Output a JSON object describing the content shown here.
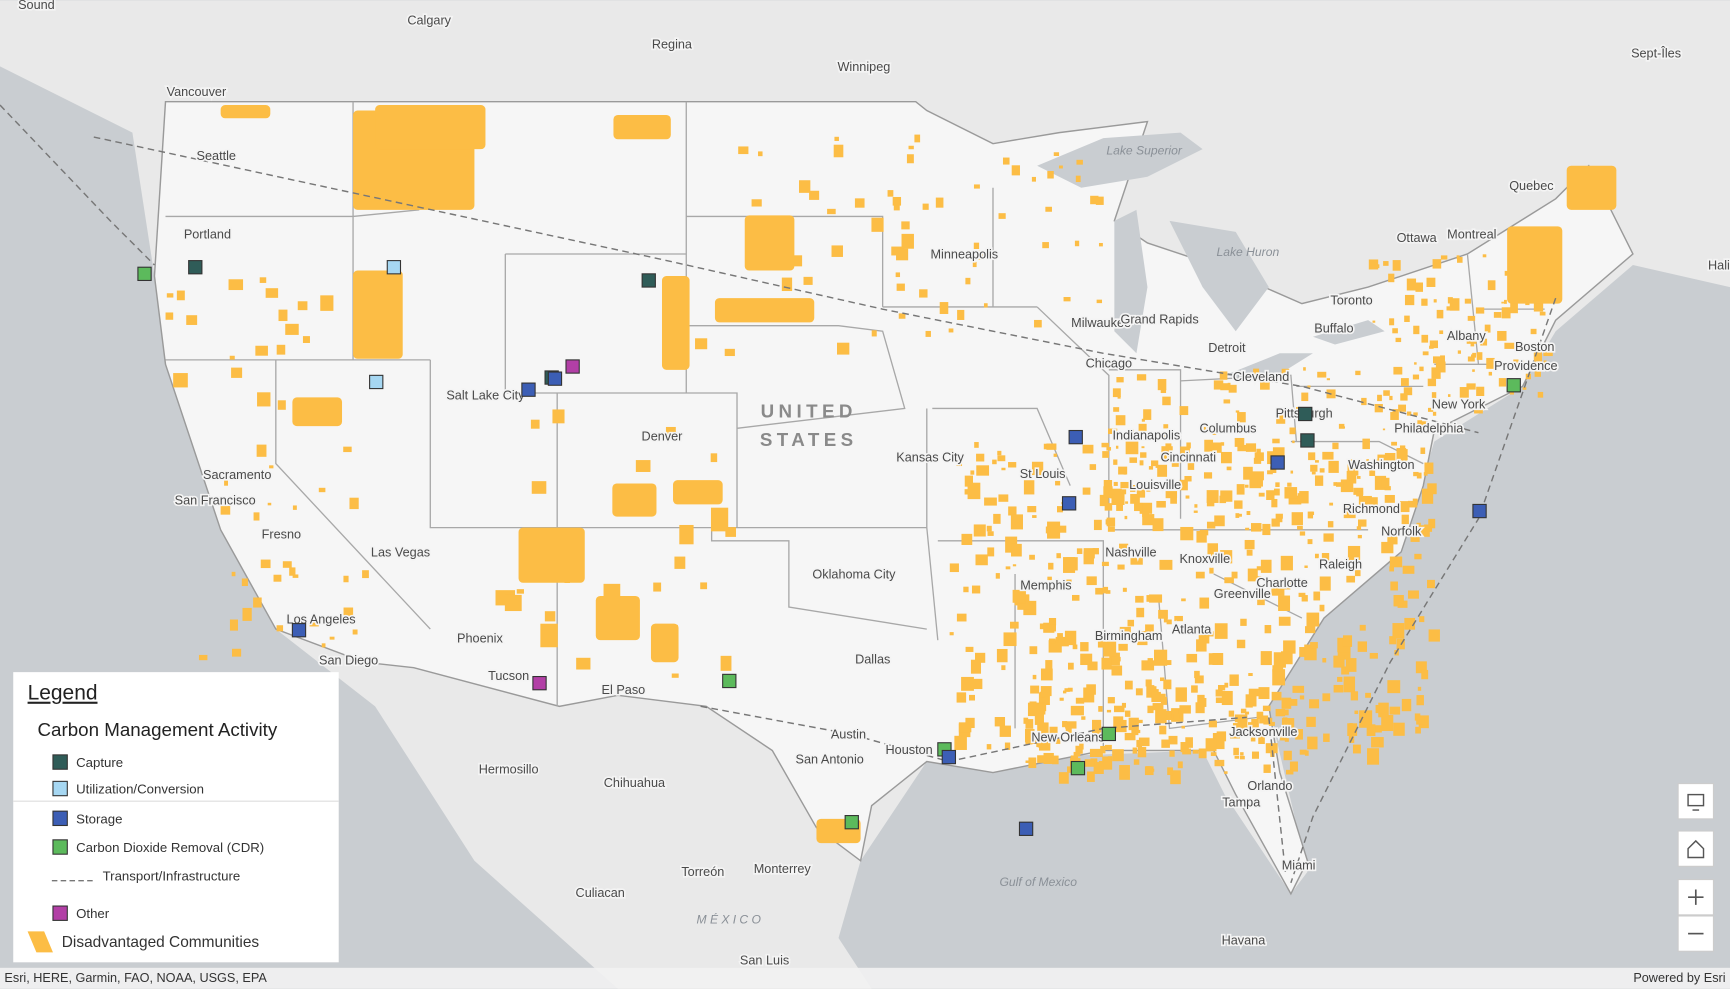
{
  "map": {
    "cities": [
      "Sound",
      "Calgary",
      "Regina",
      "Winnipeg",
      "Vancouver",
      "Seattle",
      "Portland",
      "Sept-Îles",
      "Quebec",
      "Ottawa",
      "Montreal",
      "Hali",
      "Minneapolis",
      "Toronto",
      "Milwaukee",
      "Grand Rapids",
      "Detroit",
      "Buffalo",
      "Albany",
      "Boston",
      "Providence",
      "Chicago",
      "Cleveland",
      "Salt Lake City",
      "New York",
      "Pittsburgh",
      "Philadelphia",
      "Denver",
      "Columbus",
      "Indianapolis",
      "Cincinnati",
      "Washington",
      "Kansas City",
      "St Louis",
      "Sacramento",
      "San Francisco",
      "Louisville",
      "Richmond",
      "Norfolk",
      "Fresno",
      "Las Vegas",
      "Nashville",
      "Knoxville",
      "Oklahoma City",
      "Raleigh",
      "Charlotte",
      "Memphis",
      "Greenville",
      "Los Angeles",
      "Atlanta",
      "Birmingham",
      "Phoenix",
      "San Diego",
      "Dallas",
      "Tucson",
      "El Paso",
      "Austin",
      "New Orleans",
      "Jacksonville",
      "Houston",
      "San Antonio",
      "Hermosillo",
      "Chihuahua",
      "Orlando",
      "Tampa",
      "Miami",
      "Monterrey",
      "Torreón",
      "Culiacan",
      "Havana",
      "San Luis"
    ],
    "water": [
      "Lake Superior",
      "Lake Huron",
      "Gulf of Mexico"
    ],
    "country": [
      "UNITED",
      "STATES"
    ],
    "mexico": "MÉXICO"
  },
  "legend": {
    "title": "Legend",
    "subtitle": "Carbon Management Activity",
    "items": [
      {
        "name": "Capture",
        "color": "#2f5c58"
      },
      {
        "name": "Utilization/Conversion",
        "color": "#a6d7f2"
      },
      {
        "name": "Storage",
        "color": "#3c5eb5"
      },
      {
        "name": "Carbon Dioxide Removal (CDR)",
        "color": "#5cba5c"
      },
      {
        "name": "Transport/Infrastructure",
        "color": "#777777"
      },
      {
        "name": "Other",
        "color": "#b23fa6"
      },
      {
        "name": "Disadvantaged Communities",
        "color": "#fcbd45"
      }
    ]
  },
  "attribution": "Esri, HERE, Garmin, FAO, NOAA, USGS, EPA",
  "powered_by": "Powered by Esri"
}
